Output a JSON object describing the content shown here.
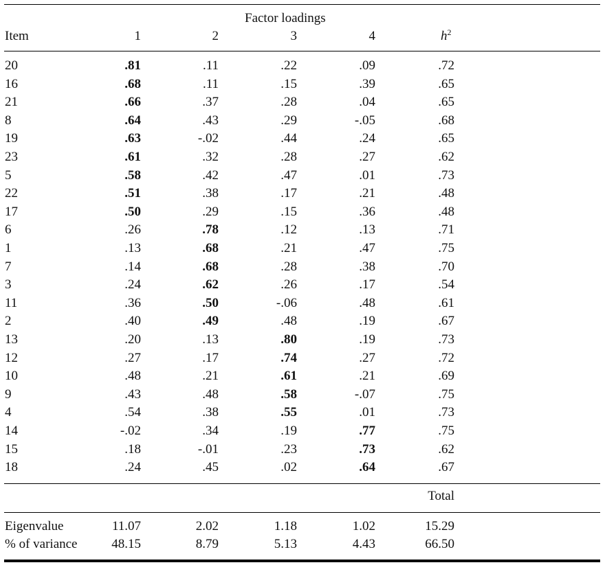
{
  "table": {
    "spanner": "Factor loadings",
    "headers": {
      "item": "Item",
      "f1": "1",
      "f2": "2",
      "f3": "3",
      "f4": "4",
      "h2_base": "h",
      "h2_sup": "2"
    },
    "rows": [
      {
        "item": "20",
        "loadings": [
          ".81",
          ".11",
          ".22",
          ".09"
        ],
        "h2": ".72",
        "primary_factor": 1
      },
      {
        "item": "16",
        "loadings": [
          ".68",
          ".11",
          ".15",
          ".39"
        ],
        "h2": ".65",
        "primary_factor": 1
      },
      {
        "item": "21",
        "loadings": [
          ".66",
          ".37",
          ".28",
          ".04"
        ],
        "h2": ".65",
        "primary_factor": 1
      },
      {
        "item": "8",
        "loadings": [
          ".64",
          ".43",
          ".29",
          "-.05"
        ],
        "h2": ".68",
        "primary_factor": 1
      },
      {
        "item": "19",
        "loadings": [
          ".63",
          "-.02",
          ".44",
          ".24"
        ],
        "h2": ".65",
        "primary_factor": 1
      },
      {
        "item": "23",
        "loadings": [
          ".61",
          ".32",
          ".28",
          ".27"
        ],
        "h2": ".62",
        "primary_factor": 1
      },
      {
        "item": "5",
        "loadings": [
          ".58",
          ".42",
          ".47",
          ".01"
        ],
        "h2": ".73",
        "primary_factor": 1
      },
      {
        "item": "22",
        "loadings": [
          ".51",
          ".38",
          ".17",
          ".21"
        ],
        "h2": ".48",
        "primary_factor": 1
      },
      {
        "item": "17",
        "loadings": [
          ".50",
          ".29",
          ".15",
          ".36"
        ],
        "h2": ".48",
        "primary_factor": 1
      },
      {
        "item": "6",
        "loadings": [
          ".26",
          ".78",
          ".12",
          ".13"
        ],
        "h2": ".71",
        "primary_factor": 2
      },
      {
        "item": "1",
        "loadings": [
          ".13",
          ".68",
          ".21",
          ".47"
        ],
        "h2": ".75",
        "primary_factor": 2
      },
      {
        "item": "7",
        "loadings": [
          ".14",
          ".68",
          ".28",
          ".38"
        ],
        "h2": ".70",
        "primary_factor": 2
      },
      {
        "item": "3",
        "loadings": [
          ".24",
          ".62",
          ".26",
          ".17"
        ],
        "h2": ".54",
        "primary_factor": 2
      },
      {
        "item": "11",
        "loadings": [
          ".36",
          ".50",
          "-.06",
          ".48"
        ],
        "h2": ".61",
        "primary_factor": 2
      },
      {
        "item": "2",
        "loadings": [
          ".40",
          ".49",
          ".48",
          ".19"
        ],
        "h2": ".67",
        "primary_factor": 2
      },
      {
        "item": "13",
        "loadings": [
          ".20",
          ".13",
          ".80",
          ".19"
        ],
        "h2": ".73",
        "primary_factor": 3
      },
      {
        "item": "12",
        "loadings": [
          ".27",
          ".17",
          ".74",
          ".27"
        ],
        "h2": ".72",
        "primary_factor": 3
      },
      {
        "item": "10",
        "loadings": [
          ".48",
          ".21",
          ".61",
          ".21"
        ],
        "h2": ".69",
        "primary_factor": 3
      },
      {
        "item": "9",
        "loadings": [
          ".43",
          ".48",
          ".58",
          "-.07"
        ],
        "h2": ".75",
        "primary_factor": 3
      },
      {
        "item": "4",
        "loadings": [
          ".54",
          ".38",
          ".55",
          ".01"
        ],
        "h2": ".73",
        "primary_factor": 3
      },
      {
        "item": "14",
        "loadings": [
          "-.02",
          ".34",
          ".19",
          ".77"
        ],
        "h2": ".75",
        "primary_factor": 4
      },
      {
        "item": "15",
        "loadings": [
          ".18",
          "-.01",
          ".23",
          ".73"
        ],
        "h2": ".62",
        "primary_factor": 4
      },
      {
        "item": "18",
        "loadings": [
          ".24",
          ".45",
          ".02",
          ".64"
        ],
        "h2": ".67",
        "primary_factor": 4
      }
    ],
    "total_label": "Total",
    "summary": [
      {
        "label": "Eigenvalue",
        "values": [
          "11.07",
          "2.02",
          "1.18",
          "1.02",
          "15.29"
        ]
      },
      {
        "label": "% of variance",
        "values": [
          "48.15",
          "8.79",
          "5.13",
          "4.43",
          "66.50"
        ]
      }
    ]
  }
}
